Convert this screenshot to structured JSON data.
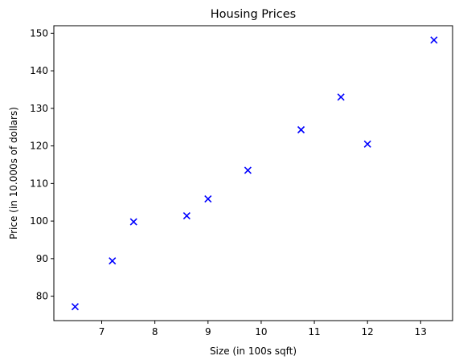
{
  "chart_data": {
    "type": "scatter",
    "title": "Housing Prices",
    "xlabel": "Size (in 100s sqft)",
    "ylabel": "Price (in 10.000s of dollars)",
    "xlim": [
      6.1,
      13.6
    ],
    "ylim": [
      73.5,
      152
    ],
    "xticks": [
      7,
      8,
      9,
      10,
      11,
      12,
      13
    ],
    "yticks": [
      80,
      90,
      100,
      110,
      120,
      130,
      140,
      150
    ],
    "grid": false,
    "marker": "x",
    "marker_color": "#0000ff",
    "points": [
      {
        "x": 6.5,
        "y": 77.2
      },
      {
        "x": 7.2,
        "y": 89.4
      },
      {
        "x": 7.6,
        "y": 99.8
      },
      {
        "x": 8.6,
        "y": 101.4
      },
      {
        "x": 9.0,
        "y": 105.9
      },
      {
        "x": 9.75,
        "y": 113.5
      },
      {
        "x": 10.75,
        "y": 124.3
      },
      {
        "x": 11.5,
        "y": 133.0
      },
      {
        "x": 12.0,
        "y": 120.5
      },
      {
        "x": 13.25,
        "y": 148.2
      }
    ]
  }
}
